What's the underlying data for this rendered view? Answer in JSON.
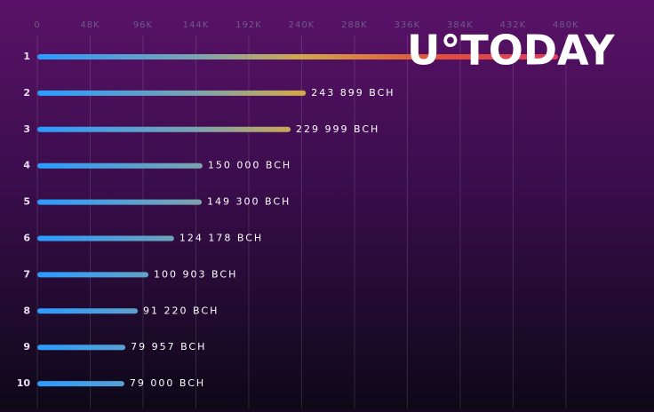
{
  "chart_data": {
    "type": "hbar",
    "watermark": "U°TODAY",
    "categories": [
      "1",
      "2",
      "3",
      "4",
      "5",
      "6",
      "7",
      "8",
      "9",
      "10"
    ],
    "values": [
      473000,
      243899,
      229999,
      150000,
      149300,
      124178,
      100903,
      91220,
      79957,
      79000
    ],
    "value_labels": [
      null,
      "243 899 BCH",
      "229 999 BCH",
      "150 000 BCH",
      "149 300 BCH",
      "124 178 BCH",
      "100 903 BCH",
      "91 220 BCH",
      "79 957 BCH",
      "79 000 BCH"
    ],
    "xlim": [
      0,
      560000
    ],
    "xticks": [
      0,
      {
        "value": 48000,
        "label": "48K"
      },
      {
        "value": 96000,
        "label": "96K"
      },
      {
        "value": 144000,
        "label": "144K"
      },
      {
        "value": 192000,
        "label": "192K"
      },
      {
        "value": 240000,
        "label": "240K"
      },
      {
        "value": 288000,
        "label": "288K"
      },
      {
        "value": 336000,
        "label": "336K"
      },
      {
        "value": 384000,
        "label": "384K"
      },
      {
        "value": 432000,
        "label": "432K"
      },
      {
        "value": 480000,
        "label": "480K"
      }
    ],
    "grid": true
  }
}
